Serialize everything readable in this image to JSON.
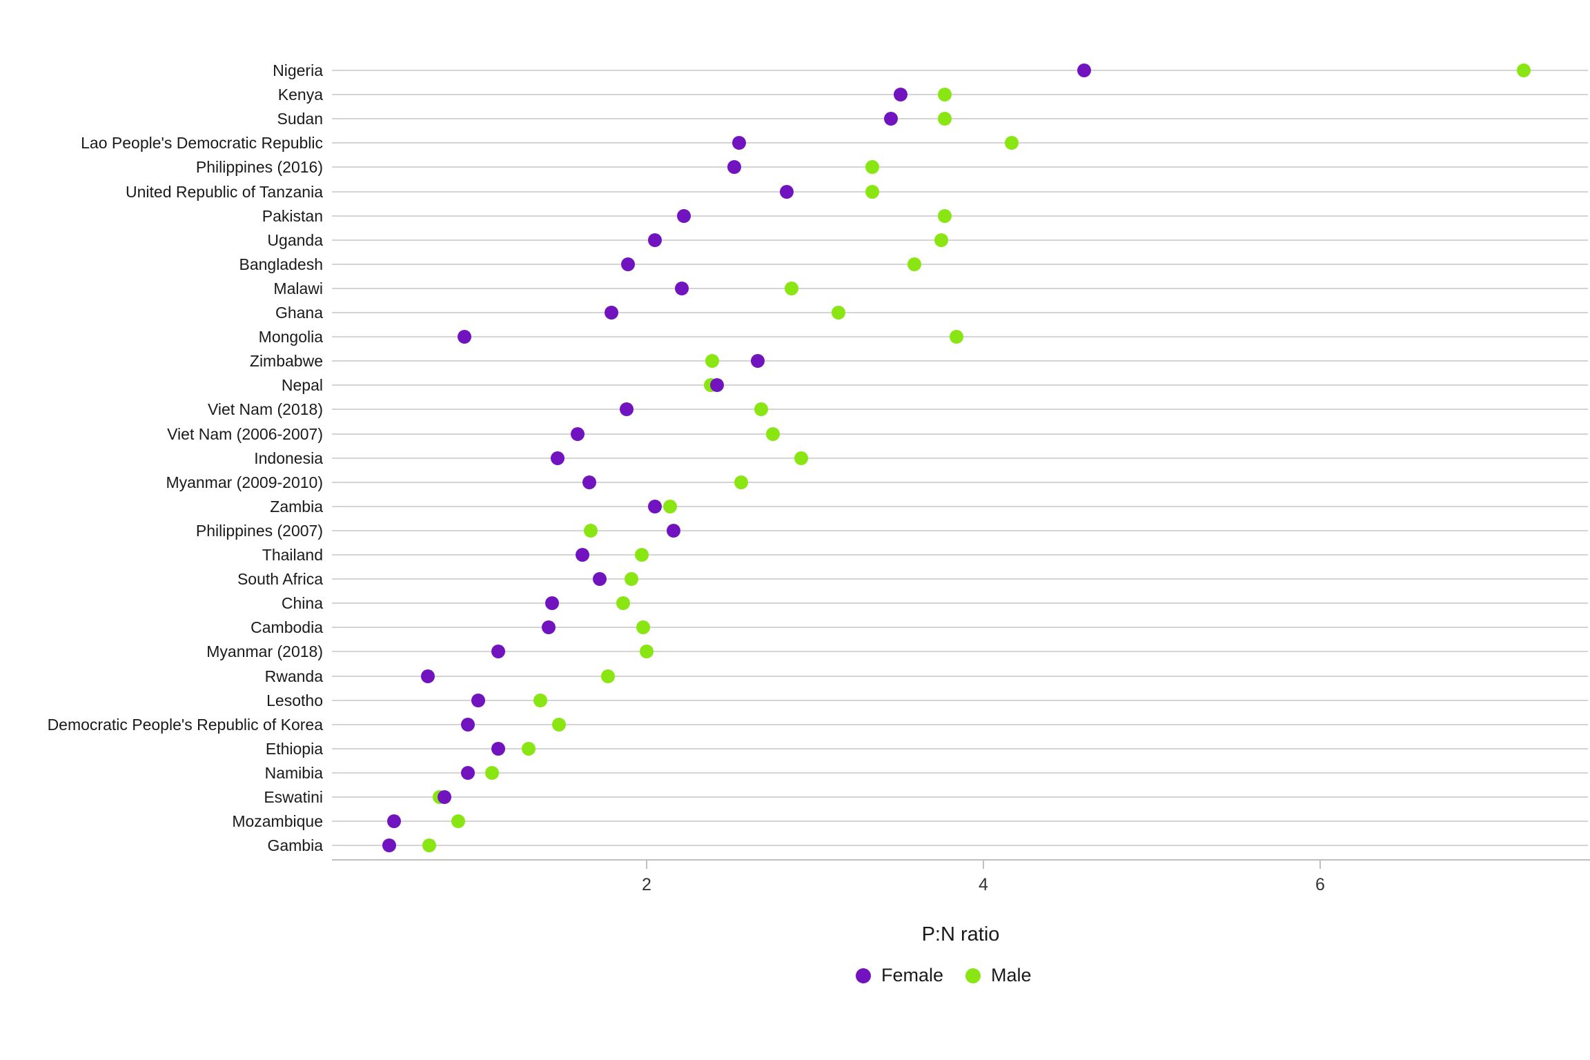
{
  "chart_data": {
    "type": "scatter",
    "variant": "horizontal-dot-plot",
    "title": "",
    "xlabel": "P:N ratio",
    "ylabel": "",
    "xticks": [
      2,
      4,
      6
    ],
    "xlim": [
      0.13,
      7.6
    ],
    "grid": "horizontal-only",
    "legend_position": "bottom-center",
    "background": "#ffffff",
    "gridline_color": "#d4d4d4",
    "axis_color": "#bfbfbf",
    "categories": [
      "Nigeria",
      "Kenya",
      "Sudan",
      "Lao People's Democratic Republic",
      "Philippines (2016)",
      "United Republic of Tanzania",
      "Pakistan",
      "Uganda",
      "Bangladesh",
      "Malawi",
      "Ghana",
      "Mongolia",
      "Zimbabwe",
      "Nepal",
      "Viet Nam (2018)",
      "Viet Nam (2006-2007)",
      "Indonesia",
      "Myanmar (2009-2010)",
      "Zambia",
      "Philippines (2007)",
      "Thailand",
      "South Africa",
      "China",
      "Cambodia",
      "Myanmar (2018)",
      "Rwanda",
      "Lesotho",
      "Democratic People's Republic of Korea",
      "Ethiopia",
      "Namibia",
      "Eswatini",
      "Mozambique",
      "Gambia"
    ],
    "series": [
      {
        "name": "Female",
        "color": "#7113BF",
        "values": [
          4.6,
          3.51,
          3.45,
          2.55,
          2.52,
          2.83,
          2.22,
          2.05,
          1.89,
          2.21,
          1.79,
          0.92,
          2.66,
          2.42,
          1.88,
          1.59,
          1.47,
          1.66,
          2.05,
          2.16,
          1.62,
          1.72,
          1.44,
          1.42,
          1.12,
          0.7,
          1.0,
          0.94,
          1.12,
          0.94,
          0.8,
          0.5,
          0.47
        ]
      },
      {
        "name": "Male",
        "color": "#89E612",
        "values": [
          7.21,
          3.77,
          3.77,
          4.17,
          3.34,
          3.34,
          3.77,
          3.75,
          3.59,
          2.86,
          3.14,
          3.84,
          2.39,
          2.38,
          2.68,
          2.75,
          2.92,
          2.56,
          2.14,
          1.67,
          1.97,
          1.91,
          1.86,
          1.98,
          2.0,
          1.77,
          1.37,
          1.48,
          1.3,
          1.08,
          0.77,
          0.88,
          0.71
        ]
      }
    ]
  }
}
